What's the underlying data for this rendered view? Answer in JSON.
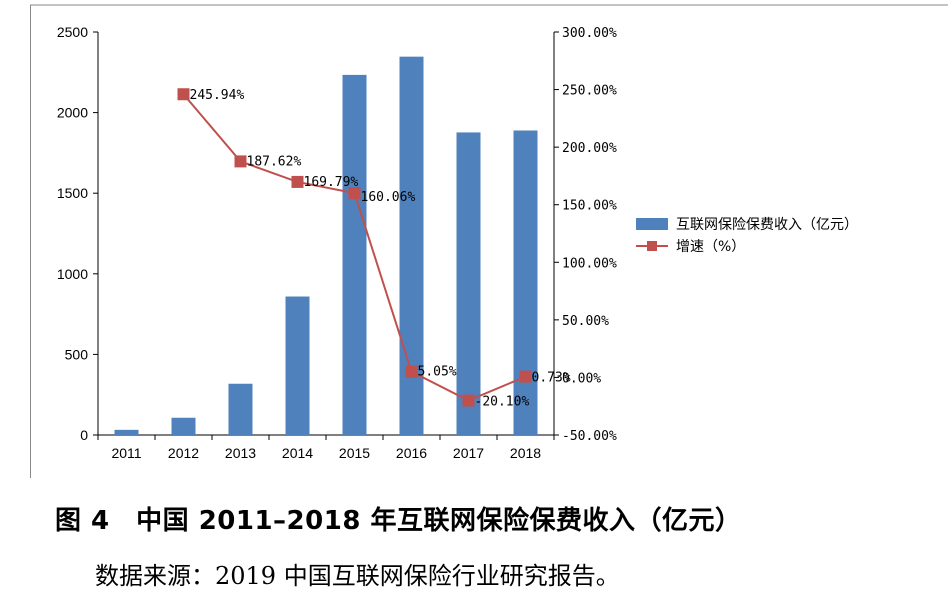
{
  "chart_data": {
    "type": "bar",
    "categories": [
      "2011",
      "2012",
      "2013",
      "2014",
      "2015",
      "2016",
      "2017",
      "2018"
    ],
    "series": [
      {
        "name": "互联网保险保费收入（亿元）",
        "type": "bar",
        "axis": "left",
        "color": "#4f81bd",
        "values": [
          32,
          107,
          318,
          859,
          2234,
          2347,
          1877,
          1889
        ]
      },
      {
        "name": "增速（%）",
        "type": "line",
        "axis": "right",
        "color": "#c0504d",
        "values": [
          null,
          245.94,
          187.62,
          169.79,
          160.06,
          5.05,
          -20.1,
          0.73
        ],
        "labels": [
          "",
          "245.94%",
          "187.62%",
          "169.79%",
          "160.06%",
          "5.05%",
          "-20.10%",
          "0.73%"
        ]
      }
    ],
    "y_left": {
      "ylim": [
        0,
        2500
      ],
      "ticks": [
        "0",
        "500",
        "1000",
        "1500",
        "2000",
        "2500"
      ],
      "tick_values": [
        0,
        500,
        1000,
        1500,
        2000,
        2500
      ]
    },
    "y_right": {
      "ylim": [
        -50,
        300
      ],
      "ticks": [
        "-50.00%",
        "0.00%",
        "50.00%",
        "100.00%",
        "150.00%",
        "200.00%",
        "250.00%",
        "300.00%"
      ],
      "tick_values": [
        -50,
        0,
        50,
        100,
        150,
        200,
        250,
        300
      ]
    },
    "grid": false,
    "legend_position": "right"
  },
  "caption": "图 4　中国 2011–2018 年互联网保险保费收入（亿元）",
  "source": "数据来源：2019 中国互联网保险行业研究报告。"
}
